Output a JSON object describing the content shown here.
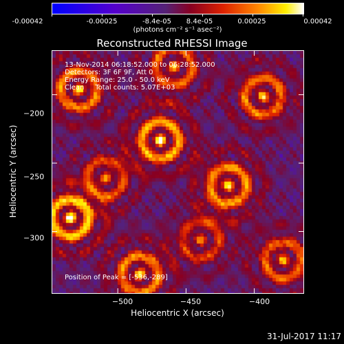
{
  "colorbar": {
    "ticks": [
      "-0.00042",
      "-0.00025",
      "-8.4e-05",
      "8.4e-05",
      "0.00025",
      "0.00042"
    ],
    "units": "(photons cm⁻² s⁻¹ asec⁻²)"
  },
  "chart_data": {
    "type": "heatmap",
    "title": "Reconstructed RHESSI Image",
    "xlabel": "Heliocentric X (arcsec)",
    "ylabel": "Heliocentric Y (arcsec)",
    "xlim": [
      -548,
      -364
    ],
    "ylim": [
      -345,
      -168
    ],
    "xticks": [
      -500,
      -450,
      -400
    ],
    "xtick_labels": [
      "−500",
      "−450",
      "−400"
    ],
    "yticks": [
      -200,
      -250,
      -300
    ],
    "ytick_labels": [
      "−200",
      "−250",
      "−300"
    ],
    "color_range": [
      -0.00042,
      0.00042
    ],
    "colormap": [
      "#0000ff",
      "#5500cc",
      "#552277",
      "#880022",
      "#dd2200",
      "#ff8800",
      "#ffee00",
      "#ffffff"
    ],
    "annotations": [
      "13-Nov-2014 06:18:52.000 to 06:28:52.000",
      "Detectors: 3F 6F 9F, Att 0",
      "Energy Range: 25.0 - 50.0 keV",
      "Clean     Total counts: 5.07E+03",
      "Position of Peak = [-536,-289]"
    ],
    "peak": [
      -536,
      -289
    ]
  },
  "footer": {
    "date": "31-Jul-2017 11:17"
  }
}
